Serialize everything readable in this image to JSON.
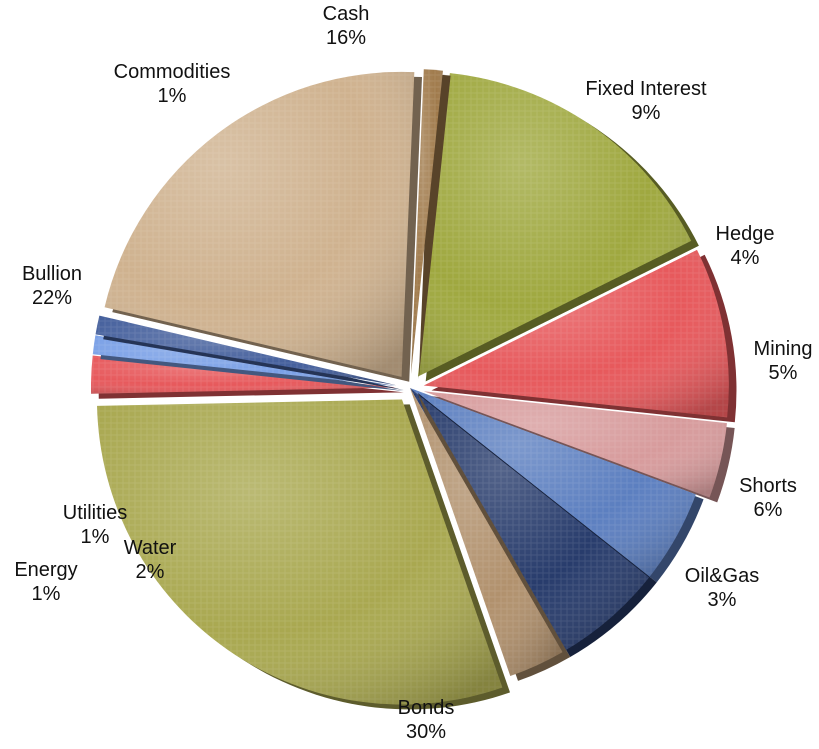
{
  "chart_data": {
    "type": "pie",
    "title": "",
    "slices": [
      {
        "label": "Cash",
        "value": 16,
        "value_label": "16%",
        "color": "#9fa83f",
        "exploded": true
      },
      {
        "label": "Fixed Interest",
        "value": 9,
        "value_label": "9%",
        "color": "#e7595c",
        "exploded": true
      },
      {
        "label": "Hedge",
        "value": 4,
        "value_label": "4%",
        "color": "#d79b9c",
        "exploded": true
      },
      {
        "label": "Mining",
        "value": 5,
        "value_label": "5%",
        "color": "#5c7fc0",
        "exploded": false
      },
      {
        "label": "Shorts",
        "value": 6,
        "value_label": "6%",
        "color": "#283c6c",
        "exploded": false
      },
      {
        "label": "Oil&Gas",
        "value": 3,
        "value_label": "3%",
        "color": "#b1916d",
        "exploded": false
      },
      {
        "label": "Bonds",
        "value": 30,
        "value_label": "30%",
        "color": "#a9a850",
        "exploded": true
      },
      {
        "label": "Water",
        "value": 2,
        "value_label": "2%",
        "color": "#e7595c",
        "exploded": true
      },
      {
        "label": "Energy",
        "value": 1,
        "value_label": "1%",
        "color": "#7aa0e6",
        "exploded": true
      },
      {
        "label": "Utilities",
        "value": 1,
        "value_label": "1%",
        "color": "#445f9c",
        "exploded": true
      },
      {
        "label": "Bullion",
        "value": 22,
        "value_label": "22%",
        "color": "#cfb28f",
        "exploded": true
      },
      {
        "label": "Commodities",
        "value": 1,
        "value_label": "1%",
        "color": "#a07a4b",
        "exploded": true
      }
    ]
  }
}
